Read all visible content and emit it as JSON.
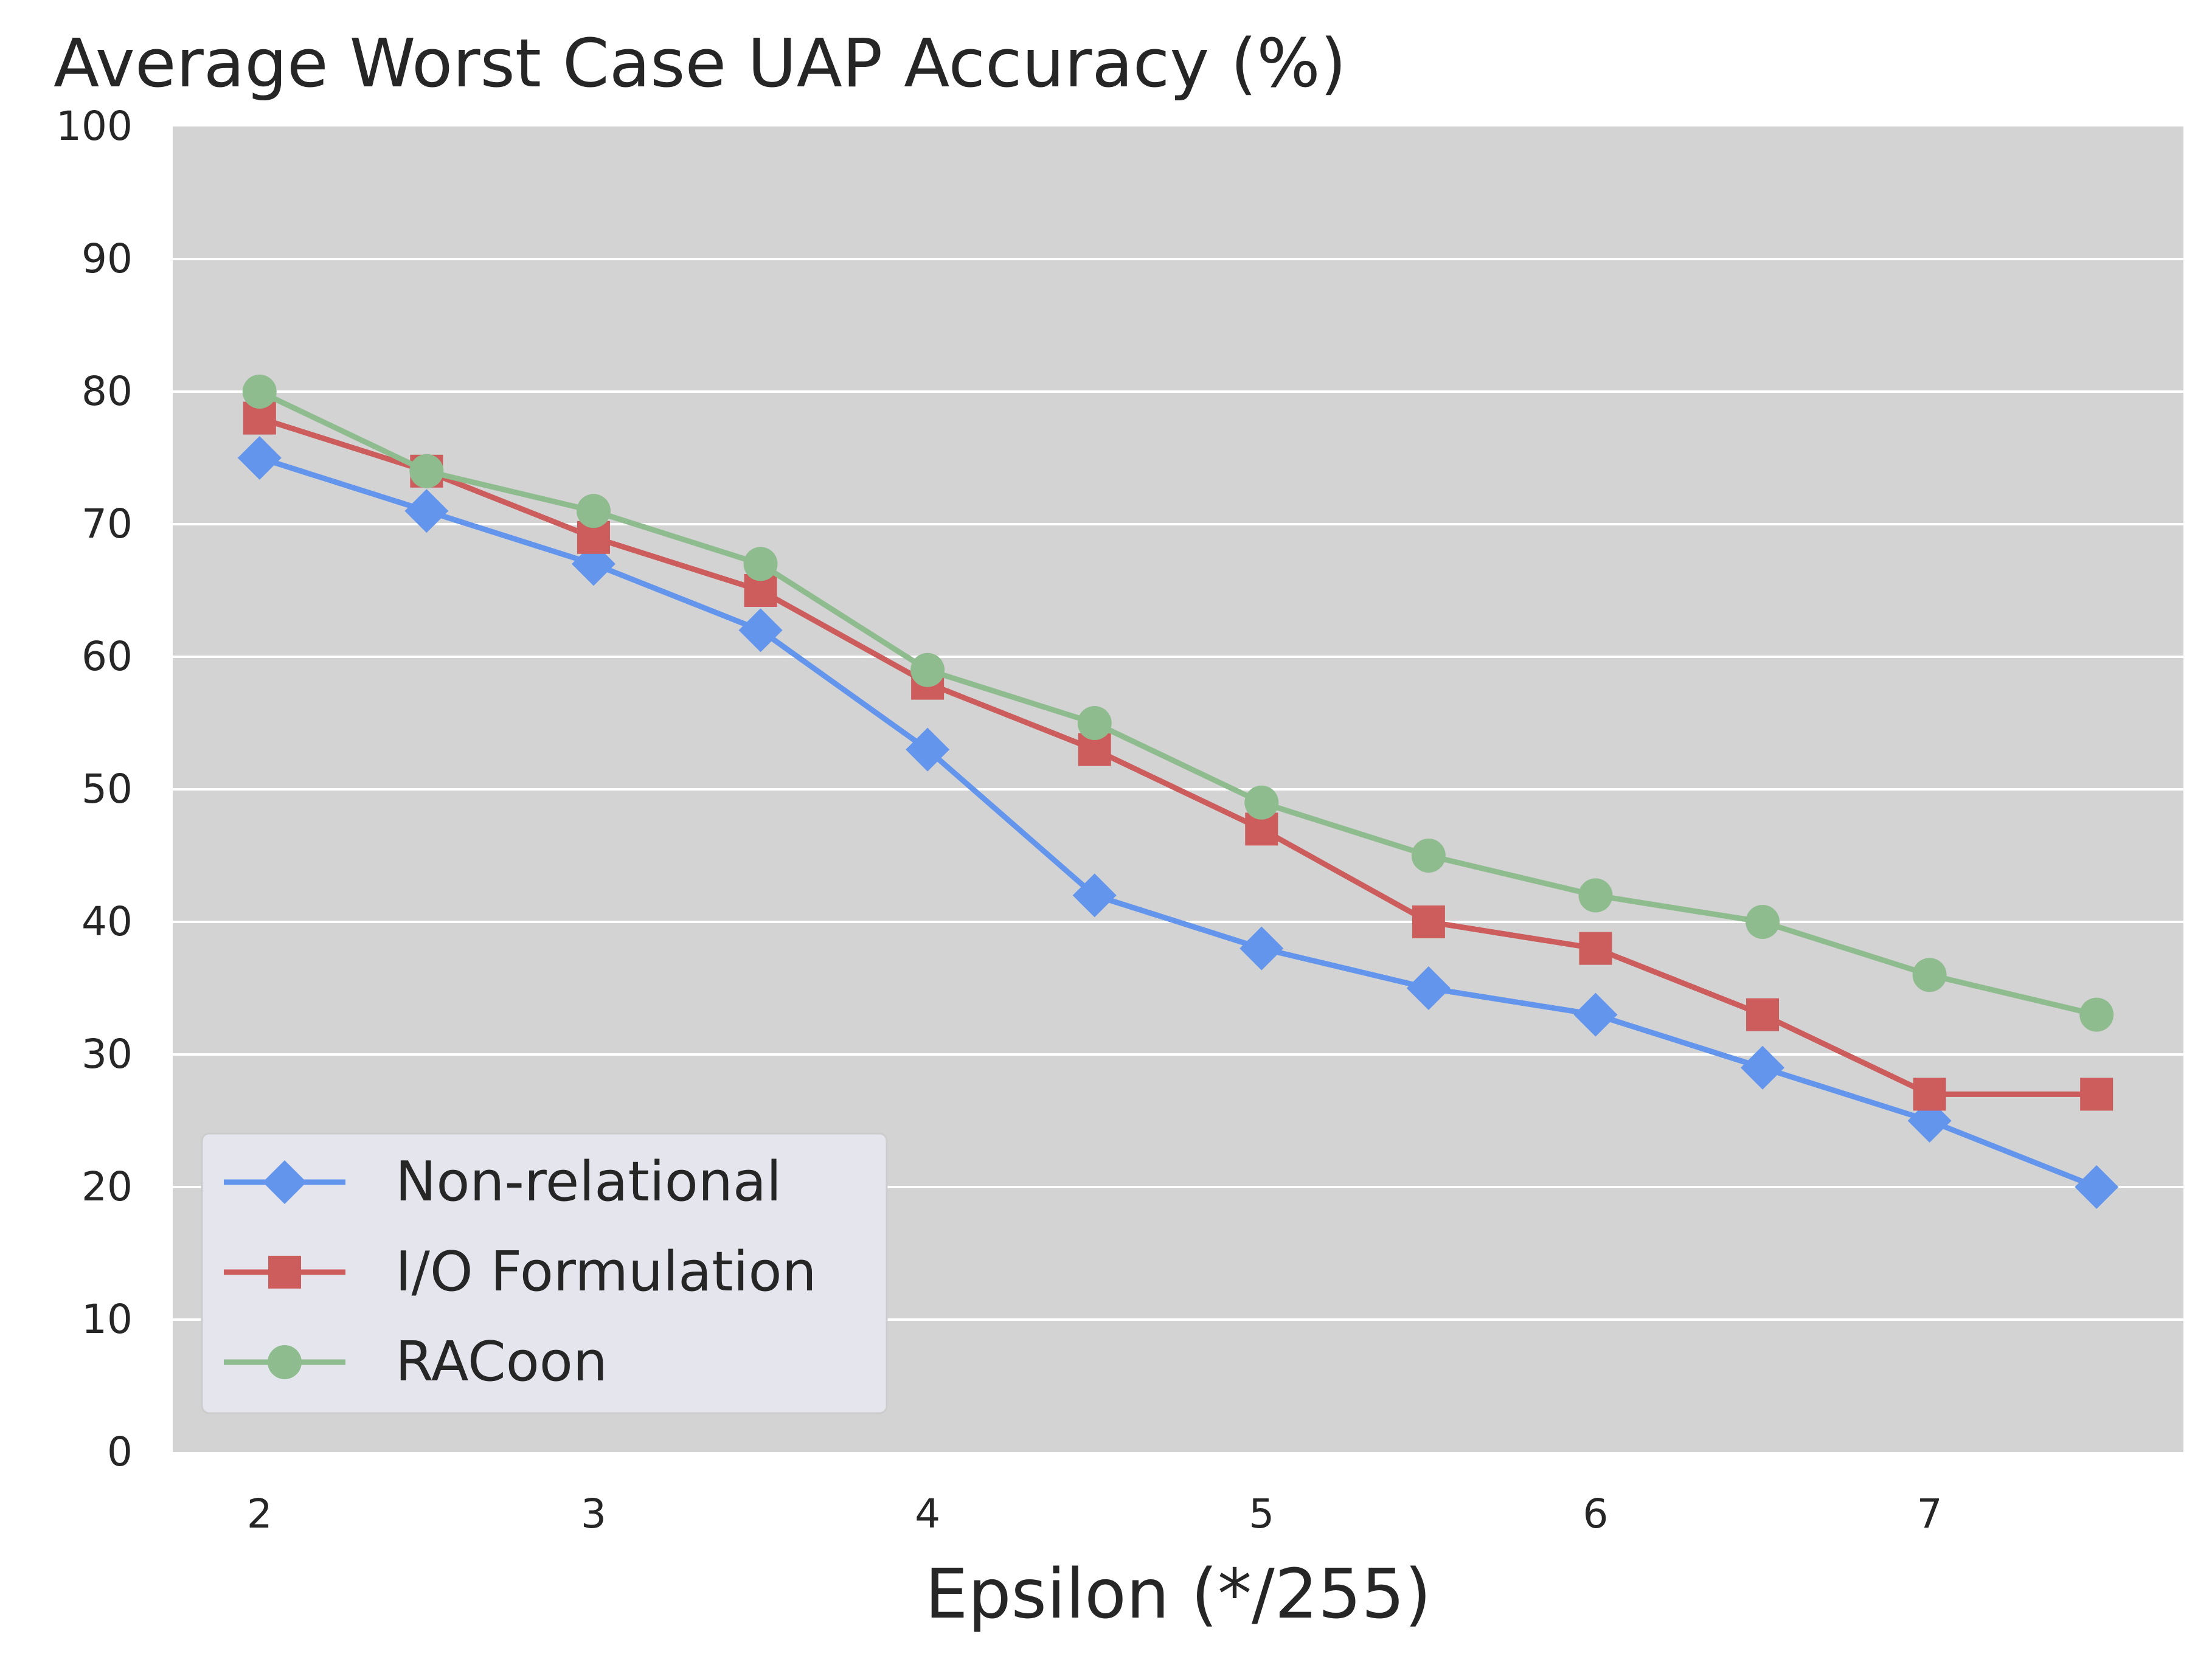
{
  "chart_data": {
    "type": "line",
    "title": "Average Worst Case UAP Accuracy (%)",
    "xlabel": "Epsilon (*/255)",
    "ylabel": "",
    "x": [
      2,
      2.5,
      3,
      3.5,
      4,
      4.5,
      5,
      5.5,
      6,
      6.5,
      7,
      7.5
    ],
    "xlim": [
      1.74,
      7.76
    ],
    "ylim": [
      0,
      100
    ],
    "xticks": [
      2,
      3,
      4,
      5,
      6,
      7
    ],
    "yticks": [
      0,
      10,
      20,
      30,
      40,
      50,
      60,
      70,
      80,
      90,
      100
    ],
    "grid": "horizontal",
    "legend_position": "lower-left",
    "background_color": "#d3d3d3",
    "series": [
      {
        "name": "Non-relational",
        "marker": "diamond",
        "color": "#6495ed",
        "values": [
          75,
          71,
          67,
          62,
          53,
          42,
          38,
          35,
          33,
          29,
          25,
          20
        ]
      },
      {
        "name": "I/O Formulation",
        "marker": "square",
        "color": "#cd5c5c",
        "values": [
          78,
          74,
          69,
          65,
          58,
          53,
          47,
          40,
          38,
          33,
          27,
          27
        ]
      },
      {
        "name": "RACoon",
        "marker": "circle",
        "color": "#8fbc8f",
        "values": [
          80,
          74,
          71,
          67,
          59,
          55,
          49,
          45,
          42,
          40,
          36,
          33
        ]
      }
    ]
  }
}
